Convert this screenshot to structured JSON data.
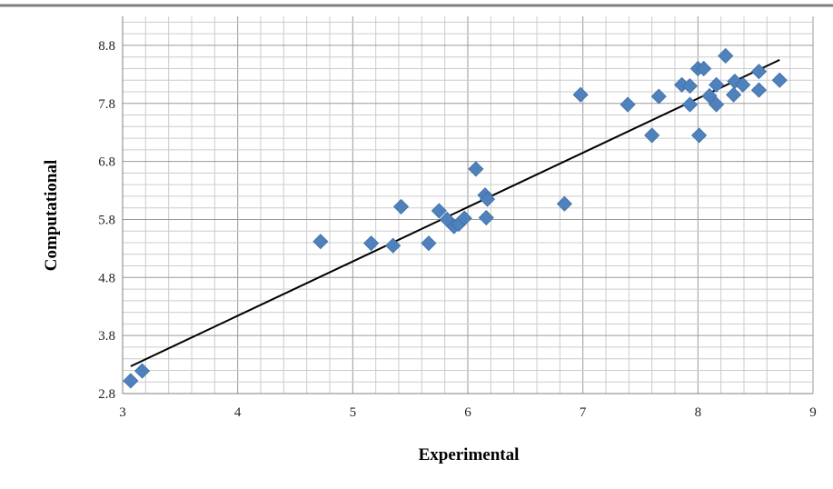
{
  "chart_data": {
    "type": "scatter",
    "title": "",
    "xlabel": "Experimental",
    "ylabel": "Computational",
    "xlim": [
      3,
      9
    ],
    "ylim": [
      2.8,
      9.3
    ],
    "x_ticks": [
      "3",
      "4",
      "5",
      "6",
      "7",
      "8",
      "9"
    ],
    "y_ticks": [
      "2.8",
      "3.8",
      "4.8",
      "5.8",
      "6.8",
      "7.8",
      "8.8"
    ],
    "grid": "major and minor",
    "legend": "none",
    "marker": "diamond",
    "marker_color": "#4f81bd",
    "trendline_color": "#000000",
    "series": [
      {
        "points": [
          [
            3.07,
            3.02
          ],
          [
            3.17,
            3.19
          ],
          [
            4.72,
            5.42
          ],
          [
            5.16,
            5.39
          ],
          [
            5.35,
            5.35
          ],
          [
            5.42,
            6.02
          ],
          [
            5.66,
            5.39
          ],
          [
            5.75,
            5.95
          ],
          [
            5.82,
            5.8
          ],
          [
            5.88,
            5.68
          ],
          [
            5.92,
            5.72
          ],
          [
            5.97,
            5.82
          ],
          [
            6.07,
            6.67
          ],
          [
            6.15,
            6.22
          ],
          [
            6.17,
            6.15
          ],
          [
            6.16,
            5.83
          ],
          [
            6.84,
            6.07
          ],
          [
            6.98,
            7.95
          ],
          [
            7.39,
            7.78
          ],
          [
            7.6,
            7.25
          ],
          [
            7.66,
            7.92
          ],
          [
            7.86,
            8.12
          ],
          [
            7.93,
            8.1
          ],
          [
            7.93,
            7.78
          ],
          [
            8.0,
            8.4
          ],
          [
            8.05,
            8.4
          ],
          [
            8.01,
            7.25
          ],
          [
            8.1,
            7.93
          ],
          [
            8.16,
            8.12
          ],
          [
            8.16,
            7.78
          ],
          [
            8.24,
            8.62
          ],
          [
            8.32,
            8.18
          ],
          [
            8.31,
            7.95
          ],
          [
            8.39,
            8.12
          ],
          [
            8.53,
            8.35
          ],
          [
            8.53,
            8.03
          ],
          [
            8.71,
            8.2
          ]
        ]
      }
    ],
    "trendline": {
      "x": [
        3.07,
        8.71
      ],
      "y": [
        3.27,
        8.55
      ]
    }
  }
}
